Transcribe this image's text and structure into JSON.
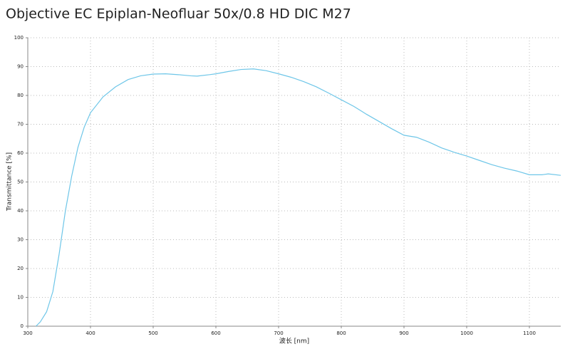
{
  "chart_data": {
    "type": "line",
    "title": "Objective EC Epiplan-Neofluar 50x/0.8 HD DIC M27",
    "xlabel": "波长 [nm]",
    "ylabel": "Transmittance [%]",
    "x": [
      313,
      320,
      330,
      340,
      350,
      360,
      370,
      380,
      390,
      400,
      420,
      440,
      460,
      480,
      500,
      520,
      540,
      560,
      570,
      590,
      600,
      620,
      640,
      660,
      680,
      700,
      720,
      740,
      760,
      780,
      800,
      820,
      840,
      860,
      880,
      900,
      920,
      940,
      960,
      980,
      1000,
      1020,
      1040,
      1060,
      1080,
      1100,
      1120,
      1130,
      1150
    ],
    "series": [
      {
        "name": "Transmittance",
        "color": "#6ec6e8",
        "values": [
          0,
          1.5,
          5,
          12,
          25,
          40,
          52,
          62,
          69,
          74,
          79.5,
          83,
          85.5,
          86.8,
          87.4,
          87.5,
          87.2,
          86.8,
          86.7,
          87.2,
          87.5,
          88.3,
          89,
          89.2,
          88.6,
          87.5,
          86.3,
          84.8,
          83,
          80.8,
          78.5,
          76.2,
          73.5,
          71,
          68.5,
          66.2,
          65.5,
          63.8,
          61.8,
          60.3,
          59,
          57.5,
          56,
          54.8,
          53.8,
          52.5,
          52.5,
          52.8,
          52.3
        ]
      }
    ],
    "xlim": [
      300,
      1150
    ],
    "ylim": [
      0,
      100
    ],
    "xticks": [
      300,
      400,
      500,
      600,
      700,
      800,
      900,
      1000,
      1100
    ],
    "yticks": [
      0,
      10,
      20,
      30,
      40,
      50,
      60,
      70,
      80,
      90,
      100
    ],
    "grid": true
  }
}
